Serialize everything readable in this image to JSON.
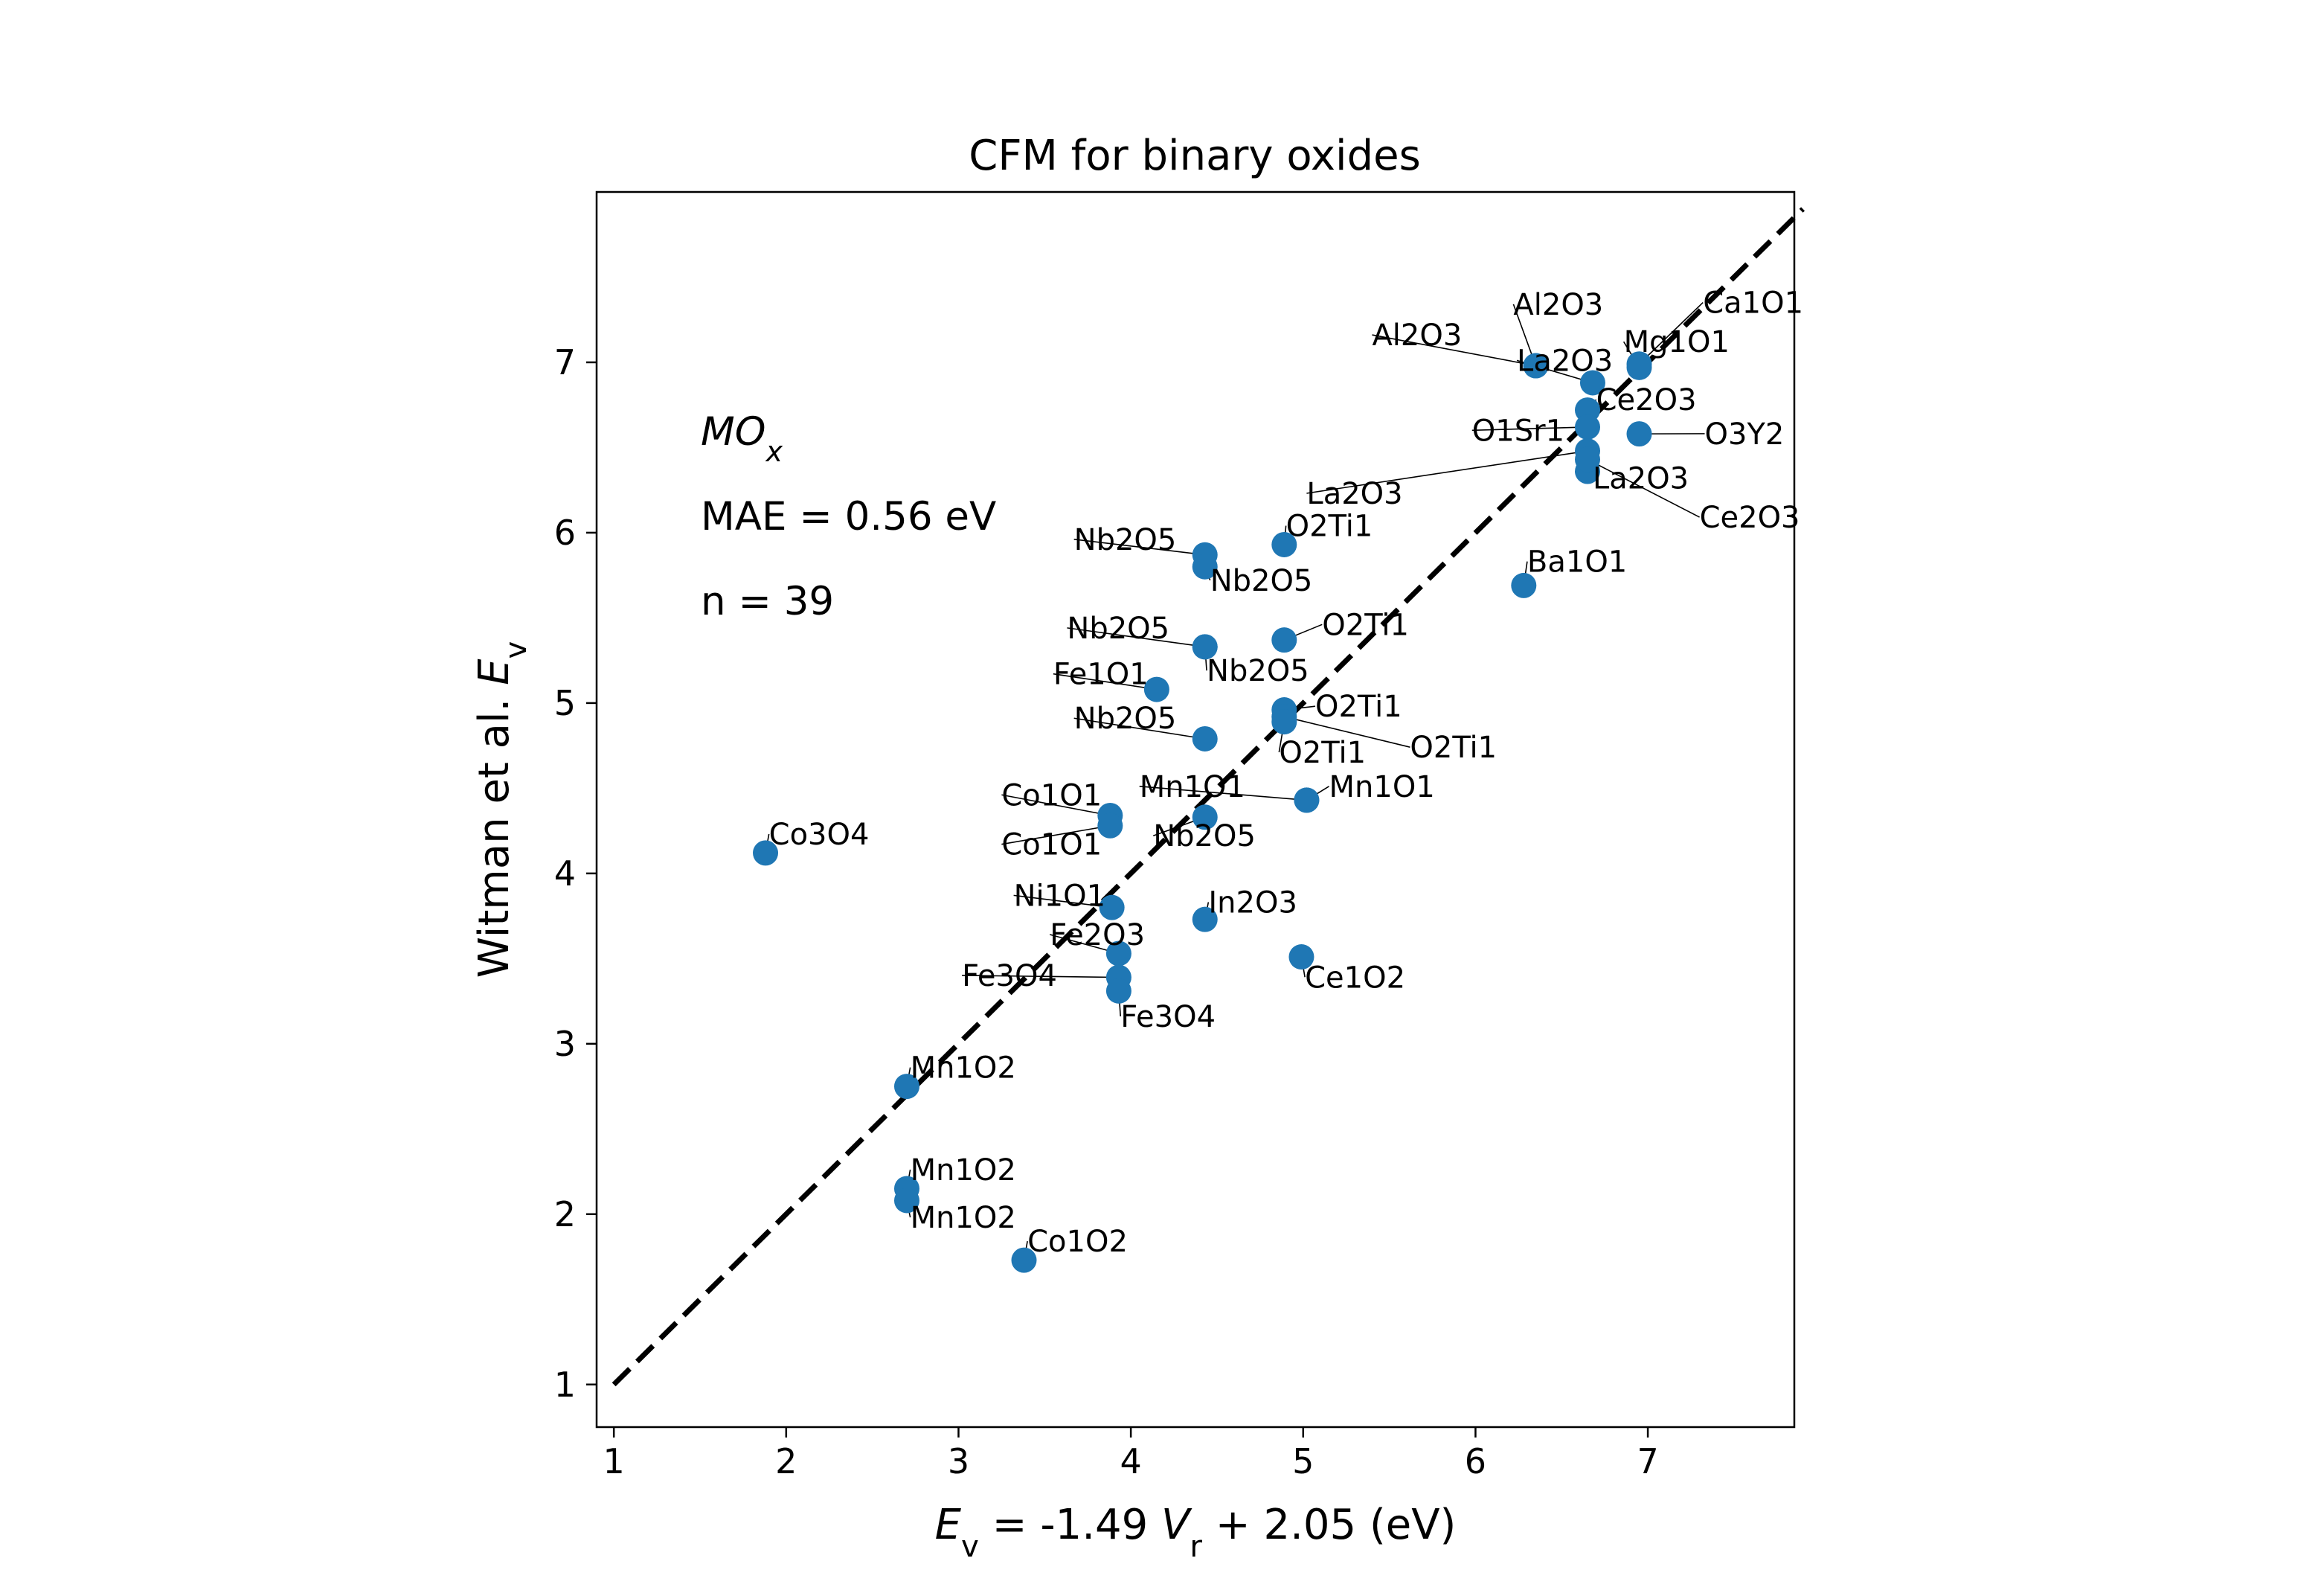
{
  "chart_data": {
    "type": "scatter",
    "title": "CFM for binary oxides",
    "xlabel_parts": [
      "E",
      "v",
      " =  -1.49 ",
      "V",
      "r",
      " + 2.05 (eV)"
    ],
    "ylabel_parts": [
      "Witman et al. ",
      "E",
      "v"
    ],
    "xlim": [
      0.9,
      7.85
    ],
    "ylim": [
      0.75,
      8.0
    ],
    "xticks": [
      1,
      2,
      3,
      4,
      5,
      6,
      7
    ],
    "yticks": [
      1,
      2,
      3,
      4,
      5,
      6,
      7
    ],
    "grid": false,
    "marker_color": "#1f77b4",
    "reference_line": {
      "style": "dashed",
      "color": "#000000",
      "x": [
        1,
        7.9
      ],
      "y": [
        1,
        7.9
      ]
    },
    "stats": {
      "label_parts": [
        "MO",
        "x"
      ],
      "mae": "MAE = 0.56 eV",
      "n": "n = 39"
    },
    "points": [
      {
        "label": "Al2O3",
        "x": 6.35,
        "y": 6.98
      },
      {
        "label": "Al2O3",
        "x": 6.35,
        "y": 6.98
      },
      {
        "label": "Ca1O1",
        "x": 6.95,
        "y": 6.99
      },
      {
        "label": "Mg1O1",
        "x": 6.95,
        "y": 6.97
      },
      {
        "label": "La2O3",
        "x": 6.68,
        "y": 6.88
      },
      {
        "label": "Ce2O3",
        "x": 6.65,
        "y": 6.72
      },
      {
        "label": "O1Sr1",
        "x": 6.65,
        "y": 6.62
      },
      {
        "label": "O3Y2",
        "x": 6.95,
        "y": 6.58
      },
      {
        "label": "La2O3",
        "x": 6.65,
        "y": 6.48
      },
      {
        "label": "La2O3",
        "x": 6.65,
        "y": 6.36
      },
      {
        "label": "Ce2O3",
        "x": 6.65,
        "y": 6.43
      },
      {
        "label": "Ba1O1",
        "x": 6.28,
        "y": 5.69
      },
      {
        "label": "Nb2O5",
        "x": 4.43,
        "y": 5.87
      },
      {
        "label": "Nb2O5",
        "x": 4.43,
        "y": 5.8
      },
      {
        "label": "O2Ti1",
        "x": 4.89,
        "y": 5.93
      },
      {
        "label": "Nb2O5",
        "x": 4.43,
        "y": 5.33
      },
      {
        "label": "Nb2O5",
        "x": 4.43,
        "y": 5.33
      },
      {
        "label": "O2Ti1",
        "x": 4.89,
        "y": 5.37
      },
      {
        "label": "Fe1O1",
        "x": 4.15,
        "y": 5.08
      },
      {
        "label": "O2Ti1",
        "x": 4.89,
        "y": 4.96
      },
      {
        "label": "O2Ti1",
        "x": 4.89,
        "y": 4.92
      },
      {
        "label": "O2Ti1",
        "x": 4.89,
        "y": 4.89
      },
      {
        "label": "Nb2O5",
        "x": 4.43,
        "y": 4.79
      },
      {
        "label": "Mn1O1",
        "x": 5.02,
        "y": 4.43
      },
      {
        "label": "Mn1O1",
        "x": 5.02,
        "y": 4.43
      },
      {
        "label": "Nb2O5",
        "x": 4.43,
        "y": 4.33
      },
      {
        "label": "Co1O1",
        "x": 3.88,
        "y": 4.34
      },
      {
        "label": "Co1O1",
        "x": 3.88,
        "y": 4.28
      },
      {
        "label": "Co3O4",
        "x": 1.88,
        "y": 4.12
      },
      {
        "label": "Ni1O1",
        "x": 3.89,
        "y": 3.8
      },
      {
        "label": "In2O3",
        "x": 4.43,
        "y": 3.73
      },
      {
        "label": "Fe2O3",
        "x": 3.93,
        "y": 3.53
      },
      {
        "label": "Ce1O2",
        "x": 4.99,
        "y": 3.51
      },
      {
        "label": "Fe3O4",
        "x": 3.93,
        "y": 3.39
      },
      {
        "label": "Fe3O4",
        "x": 3.93,
        "y": 3.31
      },
      {
        "label": "Mn1O2",
        "x": 2.7,
        "y": 2.75
      },
      {
        "label": "Mn1O2",
        "x": 2.7,
        "y": 2.15
      },
      {
        "label": "Mn1O2",
        "x": 2.7,
        "y": 2.08
      },
      {
        "label": "Co1O2",
        "x": 3.38,
        "y": 1.73
      }
    ],
    "labels": [
      {
        "text": "Al2O3",
        "x": 6.22,
        "y": 7.28,
        "anchor": "start",
        "px": 6.35,
        "py": 6.98
      },
      {
        "text": "Al2O3",
        "x": 5.4,
        "y": 7.1,
        "anchor": "start",
        "px": 6.35,
        "py": 6.98
      },
      {
        "text": "Ca1O1",
        "x": 7.32,
        "y": 7.29,
        "anchor": "start",
        "px": 6.95,
        "py": 6.99
      },
      {
        "text": "Mg1O1",
        "x": 6.86,
        "y": 7.06,
        "anchor": "start",
        "px": 6.95,
        "py": 6.97
      },
      {
        "text": "La2O3",
        "x": 6.24,
        "y": 6.95,
        "anchor": "start",
        "px": 6.68,
        "py": 6.88
      },
      {
        "text": "Ce2O3",
        "x": 6.7,
        "y": 6.72,
        "anchor": "start",
        "px": 6.65,
        "py": 6.72
      },
      {
        "text": "O1Sr1",
        "x": 5.98,
        "y": 6.54,
        "anchor": "start",
        "px": 6.65,
        "py": 6.62
      },
      {
        "text": "O3Y2",
        "x": 7.33,
        "y": 6.52,
        "anchor": "start",
        "px": 6.95,
        "py": 6.58
      },
      {
        "text": "La2O3",
        "x": 6.68,
        "y": 6.26,
        "anchor": "start",
        "px": 6.65,
        "py": 6.36
      },
      {
        "text": "La2O3",
        "x": 5.02,
        "y": 6.17,
        "anchor": "start",
        "px": 6.65,
        "py": 6.48
      },
      {
        "text": "Ce2O3",
        "x": 7.3,
        "y": 6.03,
        "anchor": "start",
        "px": 6.65,
        "py": 6.43
      },
      {
        "text": "Ba1O1",
        "x": 6.3,
        "y": 5.77,
        "anchor": "start",
        "px": 6.28,
        "py": 5.69
      },
      {
        "text": "Nb2O5",
        "x": 3.67,
        "y": 5.9,
        "anchor": "start",
        "px": 4.43,
        "py": 5.87
      },
      {
        "text": "Nb2O5",
        "x": 4.46,
        "y": 5.66,
        "anchor": "start",
        "px": 4.43,
        "py": 5.8
      },
      {
        "text": "O2Ti1",
        "x": 4.9,
        "y": 5.98,
        "anchor": "start",
        "px": 4.89,
        "py": 5.93
      },
      {
        "text": "Nb2O5",
        "x": 3.63,
        "y": 5.38,
        "anchor": "start",
        "px": 4.43,
        "py": 5.33
      },
      {
        "text": "Nb2O5",
        "x": 4.44,
        "y": 5.13,
        "anchor": "start",
        "px": 4.43,
        "py": 5.33
      },
      {
        "text": "O2Ti1",
        "x": 5.11,
        "y": 5.4,
        "anchor": "start",
        "px": 4.89,
        "py": 5.37
      },
      {
        "text": "Fe1O1",
        "x": 3.55,
        "y": 5.11,
        "anchor": "start",
        "px": 4.15,
        "py": 5.08
      },
      {
        "text": "O2Ti1",
        "x": 5.07,
        "y": 4.92,
        "anchor": "start",
        "px": 4.89,
        "py": 4.96
      },
      {
        "text": "O2Ti1",
        "x": 5.62,
        "y": 4.68,
        "anchor": "start",
        "px": 4.89,
        "py": 4.92
      },
      {
        "text": "O2Ti1",
        "x": 4.86,
        "y": 4.65,
        "anchor": "start",
        "px": 4.89,
        "py": 4.89
      },
      {
        "text": "Nb2O5",
        "x": 3.67,
        "y": 4.85,
        "anchor": "start",
        "px": 4.43,
        "py": 4.79
      },
      {
        "text": "Mn1O1",
        "x": 4.05,
        "y": 4.45,
        "anchor": "start",
        "px": 5.02,
        "py": 4.43
      },
      {
        "text": "Mn1O1",
        "x": 5.15,
        "y": 4.45,
        "anchor": "start",
        "px": 5.02,
        "py": 4.43
      },
      {
        "text": "Nb2O5",
        "x": 4.13,
        "y": 4.16,
        "anchor": "start",
        "px": 4.43,
        "py": 4.33
      },
      {
        "text": "Co1O1",
        "x": 3.25,
        "y": 4.4,
        "anchor": "start",
        "px": 3.88,
        "py": 4.34
      },
      {
        "text": "Co1O1",
        "x": 3.25,
        "y": 4.11,
        "anchor": "start",
        "px": 3.88,
        "py": 4.28
      },
      {
        "text": "Co3O4",
        "x": 1.9,
        "y": 4.17,
        "anchor": "start",
        "px": 1.88,
        "py": 4.12
      },
      {
        "text": "Ni1O1",
        "x": 3.32,
        "y": 3.81,
        "anchor": "start",
        "px": 3.89,
        "py": 3.8
      },
      {
        "text": "In2O3",
        "x": 4.45,
        "y": 3.77,
        "anchor": "start",
        "px": 4.43,
        "py": 3.73
      },
      {
        "text": "Fe2O3",
        "x": 3.53,
        "y": 3.58,
        "anchor": "start",
        "px": 3.93,
        "py": 3.53
      },
      {
        "text": "Ce1O2",
        "x": 5.01,
        "y": 3.33,
        "anchor": "start",
        "px": 4.99,
        "py": 3.51
      },
      {
        "text": "Fe3O4",
        "x": 3.02,
        "y": 3.34,
        "anchor": "start",
        "px": 3.93,
        "py": 3.39
      },
      {
        "text": "Fe3O4",
        "x": 3.94,
        "y": 3.1,
        "anchor": "start",
        "px": 3.93,
        "py": 3.31
      },
      {
        "text": "Mn1O2",
        "x": 2.72,
        "y": 2.8,
        "anchor": "start",
        "px": 2.7,
        "py": 2.75
      },
      {
        "text": "Mn1O2",
        "x": 2.72,
        "y": 2.2,
        "anchor": "start",
        "px": 2.7,
        "py": 2.15
      },
      {
        "text": "Mn1O2",
        "x": 2.72,
        "y": 1.92,
        "anchor": "start",
        "px": 2.7,
        "py": 2.08
      },
      {
        "text": "Co1O2",
        "x": 3.4,
        "y": 1.78,
        "anchor": "start",
        "px": 3.38,
        "py": 1.73
      }
    ]
  }
}
